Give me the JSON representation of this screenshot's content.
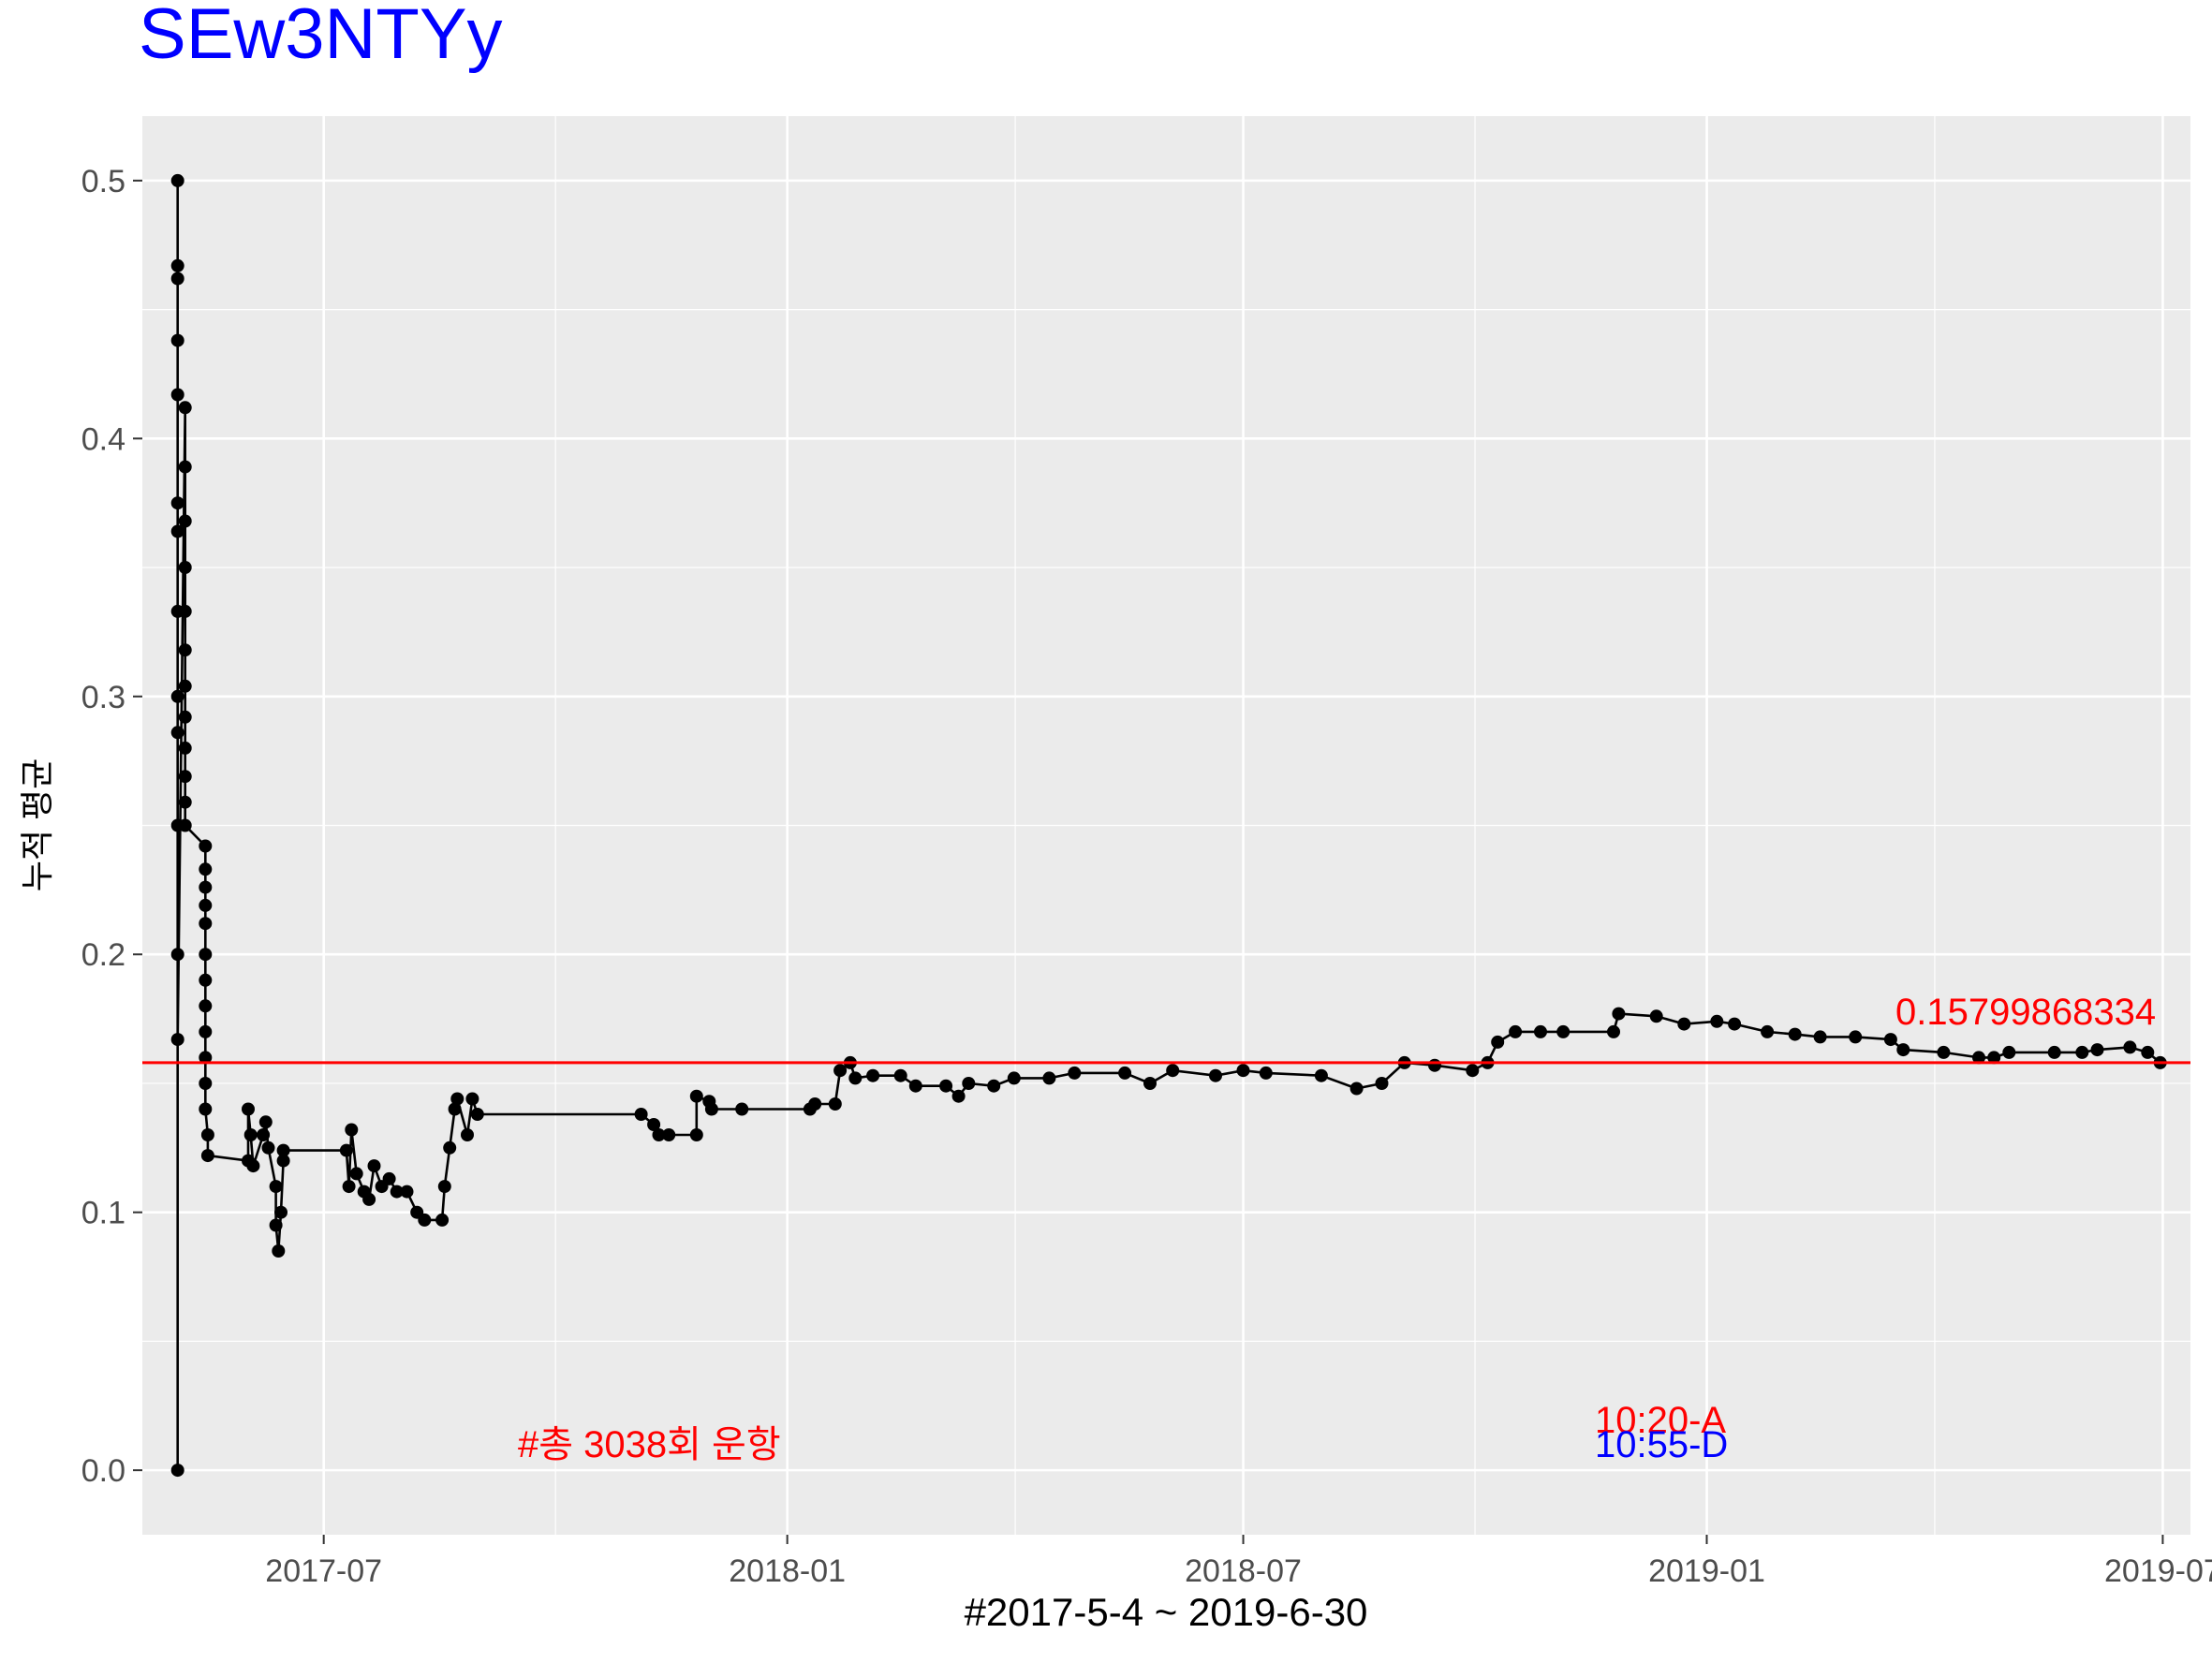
{
  "chart_data": {
    "type": "line",
    "title": "SEw3NTYy",
    "xlabel": "#2017-5-4 ~ 2019-6-30",
    "ylabel": "누적 평균",
    "x_range": [
      "2017-04-20",
      "2019-07-12"
    ],
    "ylim": [
      -0.025,
      0.525
    ],
    "grid": true,
    "x_ticks": [
      {
        "date": "2017-07-01",
        "label": "2017-07"
      },
      {
        "date": "2018-01-01",
        "label": "2018-01"
      },
      {
        "date": "2018-07-01",
        "label": "2018-07"
      },
      {
        "date": "2019-01-01",
        "label": "2019-01"
      },
      {
        "date": "2019-07-01",
        "label": "2019-07"
      }
    ],
    "y_ticks": [
      {
        "value": 0.0,
        "label": "0.0"
      },
      {
        "value": 0.1,
        "label": "0.1"
      },
      {
        "value": 0.2,
        "label": "0.2"
      },
      {
        "value": 0.3,
        "label": "0.3"
      },
      {
        "value": 0.4,
        "label": "0.4"
      },
      {
        "value": 0.5,
        "label": "0.5"
      }
    ],
    "series": [
      {
        "color": "#000000",
        "points": [
          [
            "2017-05-04",
            0.0
          ],
          [
            "2017-05-04",
            0.5
          ],
          [
            "2017-05-04",
            0.467
          ],
          [
            "2017-05-04",
            0.462
          ],
          [
            "2017-05-04",
            0.438
          ],
          [
            "2017-05-04",
            0.417
          ],
          [
            "2017-05-04",
            0.375
          ],
          [
            "2017-05-04",
            0.364
          ],
          [
            "2017-05-04",
            0.333
          ],
          [
            "2017-05-04",
            0.3
          ],
          [
            "2017-05-04",
            0.286
          ],
          [
            "2017-05-04",
            0.25
          ],
          [
            "2017-05-04",
            0.2
          ],
          [
            "2017-05-04",
            0.167
          ],
          [
            "2017-05-07",
            0.412
          ],
          [
            "2017-05-07",
            0.389
          ],
          [
            "2017-05-07",
            0.368
          ],
          [
            "2017-05-07",
            0.35
          ],
          [
            "2017-05-07",
            0.333
          ],
          [
            "2017-05-07",
            0.318
          ],
          [
            "2017-05-07",
            0.304
          ],
          [
            "2017-05-07",
            0.292
          ],
          [
            "2017-05-07",
            0.28
          ],
          [
            "2017-05-07",
            0.269
          ],
          [
            "2017-05-07",
            0.259
          ],
          [
            "2017-05-07",
            0.25
          ],
          [
            "2017-05-15",
            0.242
          ],
          [
            "2017-05-15",
            0.233
          ],
          [
            "2017-05-15",
            0.226
          ],
          [
            "2017-05-15",
            0.219
          ],
          [
            "2017-05-15",
            0.212
          ],
          [
            "2017-05-15",
            0.2
          ],
          [
            "2017-05-15",
            0.19
          ],
          [
            "2017-05-15",
            0.18
          ],
          [
            "2017-05-15",
            0.17
          ],
          [
            "2017-05-15",
            0.16
          ],
          [
            "2017-05-15",
            0.15
          ],
          [
            "2017-05-15",
            0.14
          ],
          [
            "2017-05-16",
            0.13
          ],
          [
            "2017-05-16",
            0.122
          ],
          [
            "2017-06-01",
            0.12
          ],
          [
            "2017-06-01",
            0.14
          ],
          [
            "2017-06-02",
            0.13
          ],
          [
            "2017-06-03",
            0.118
          ],
          [
            "2017-06-07",
            0.13
          ],
          [
            "2017-06-08",
            0.135
          ],
          [
            "2017-06-09",
            0.125
          ],
          [
            "2017-06-12",
            0.11
          ],
          [
            "2017-06-12",
            0.095
          ],
          [
            "2017-06-13",
            0.085
          ],
          [
            "2017-06-14",
            0.1
          ],
          [
            "2017-06-15",
            0.12
          ],
          [
            "2017-06-15",
            0.124
          ],
          [
            "2017-07-10",
            0.124
          ],
          [
            "2017-07-11",
            0.11
          ],
          [
            "2017-07-12",
            0.132
          ],
          [
            "2017-07-14",
            0.115
          ],
          [
            "2017-07-17",
            0.108
          ],
          [
            "2017-07-19",
            0.105
          ],
          [
            "2017-07-21",
            0.118
          ],
          [
            "2017-07-24",
            0.11
          ],
          [
            "2017-07-27",
            0.113
          ],
          [
            "2017-07-30",
            0.108
          ],
          [
            "2017-08-03",
            0.108
          ],
          [
            "2017-08-07",
            0.1
          ],
          [
            "2017-08-10",
            0.097
          ],
          [
            "2017-08-17",
            0.097
          ],
          [
            "2017-08-18",
            0.11
          ],
          [
            "2017-08-20",
            0.125
          ],
          [
            "2017-08-22",
            0.14
          ],
          [
            "2017-08-23",
            0.144
          ],
          [
            "2017-08-27",
            0.13
          ],
          [
            "2017-08-29",
            0.144
          ],
          [
            "2017-08-31",
            0.138
          ],
          [
            "2017-11-04",
            0.138
          ],
          [
            "2017-11-09",
            0.134
          ],
          [
            "2017-11-11",
            0.13
          ],
          [
            "2017-11-15",
            0.13
          ],
          [
            "2017-11-26",
            0.13
          ],
          [
            "2017-11-26",
            0.145
          ],
          [
            "2017-12-01",
            0.143
          ],
          [
            "2017-12-02",
            0.14
          ],
          [
            "2017-12-14",
            0.14
          ],
          [
            "2018-01-10",
            0.14
          ],
          [
            "2018-01-12",
            0.142
          ],
          [
            "2018-01-20",
            0.142
          ],
          [
            "2018-01-22",
            0.155
          ],
          [
            "2018-01-26",
            0.158
          ],
          [
            "2018-01-28",
            0.152
          ],
          [
            "2018-02-04",
            0.153
          ],
          [
            "2018-02-15",
            0.153
          ],
          [
            "2018-02-21",
            0.149
          ],
          [
            "2018-03-05",
            0.149
          ],
          [
            "2018-03-10",
            0.145
          ],
          [
            "2018-03-14",
            0.15
          ],
          [
            "2018-03-24",
            0.149
          ],
          [
            "2018-04-01",
            0.152
          ],
          [
            "2018-04-15",
            0.152
          ],
          [
            "2018-04-25",
            0.154
          ],
          [
            "2018-05-15",
            0.154
          ],
          [
            "2018-05-25",
            0.15
          ],
          [
            "2018-06-03",
            0.155
          ],
          [
            "2018-06-20",
            0.153
          ],
          [
            "2018-07-01",
            0.155
          ],
          [
            "2018-07-10",
            0.154
          ],
          [
            "2018-08-01",
            0.153
          ],
          [
            "2018-08-15",
            0.148
          ],
          [
            "2018-08-25",
            0.15
          ],
          [
            "2018-09-03",
            0.158
          ],
          [
            "2018-09-15",
            0.157
          ],
          [
            "2018-09-30",
            0.155
          ],
          [
            "2018-10-06",
            0.158
          ],
          [
            "2018-10-10",
            0.166
          ],
          [
            "2018-10-17",
            0.17
          ],
          [
            "2018-10-27",
            0.17
          ],
          [
            "2018-11-05",
            0.17
          ],
          [
            "2018-11-25",
            0.17
          ],
          [
            "2018-11-27",
            0.177
          ],
          [
            "2018-12-12",
            0.176
          ],
          [
            "2018-12-23",
            0.173
          ],
          [
            "2019-01-05",
            0.174
          ],
          [
            "2019-01-12",
            0.173
          ],
          [
            "2019-01-25",
            0.17
          ],
          [
            "2019-02-05",
            0.169
          ],
          [
            "2019-02-15",
            0.168
          ],
          [
            "2019-03-01",
            0.168
          ],
          [
            "2019-03-15",
            0.167
          ],
          [
            "2019-03-20",
            0.163
          ],
          [
            "2019-04-05",
            0.162
          ],
          [
            "2019-04-19",
            0.16
          ],
          [
            "2019-04-25",
            0.16
          ],
          [
            "2019-05-01",
            0.162
          ],
          [
            "2019-05-19",
            0.162
          ],
          [
            "2019-05-30",
            0.162
          ],
          [
            "2019-06-05",
            0.163
          ],
          [
            "2019-06-18",
            0.164
          ],
          [
            "2019-06-25",
            0.162
          ],
          [
            "2019-06-30",
            0.158
          ]
        ]
      }
    ],
    "hline": {
      "value": 0.157998683344,
      "color": "#ff0000"
    },
    "annotations": {
      "mean_label": "0.15799868334",
      "total_label": "#총 3038회 운항",
      "arrival_label": "10:20-A",
      "departure_label": "10:55-D"
    },
    "colors": {
      "panel": "#ebebeb",
      "grid_major": "#ffffff",
      "title": "#0000ff",
      "mean_line": "#ff0000",
      "arrival": "#ff0000",
      "departure": "#0000ff",
      "series": "#000000",
      "tick_text": "#4d4d4d"
    }
  }
}
